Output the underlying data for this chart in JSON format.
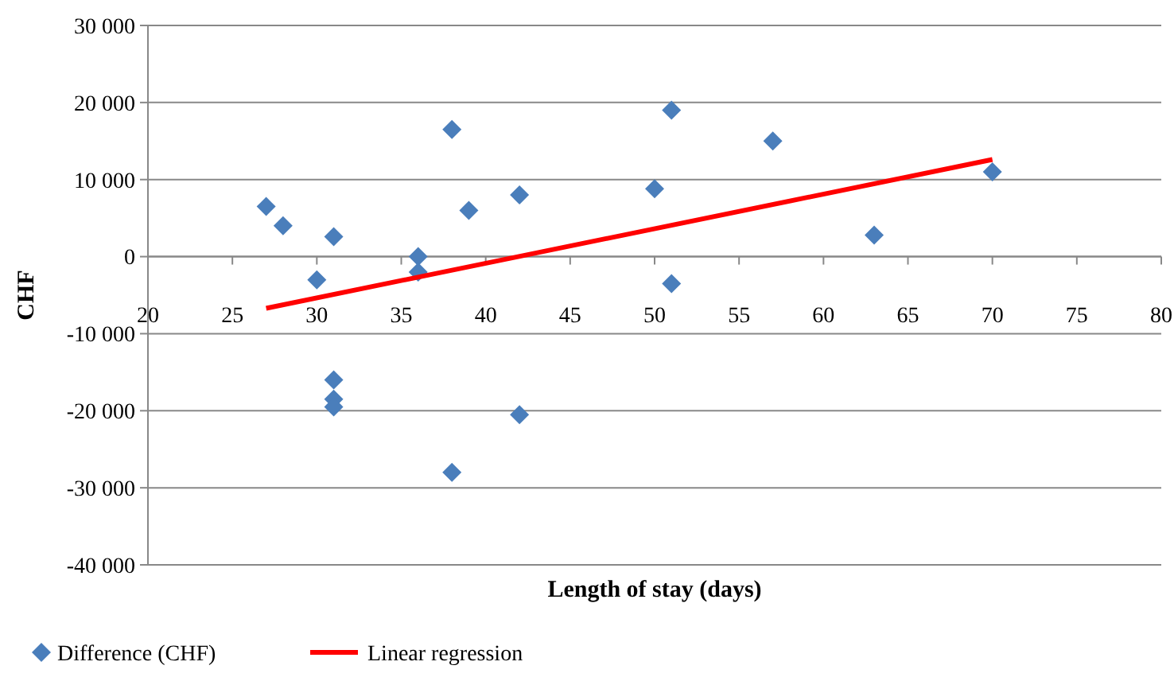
{
  "chart_data": {
    "type": "scatter",
    "xlabel": "Length of stay (days)",
    "ylabel": "CHF",
    "xlim": [
      20,
      80
    ],
    "xticks": [
      20,
      25,
      30,
      35,
      40,
      45,
      50,
      55,
      60,
      65,
      70,
      75,
      80
    ],
    "ylim": [
      -40000,
      30000
    ],
    "yticks": [
      {
        "value": -40000,
        "label": "-40 000"
      },
      {
        "value": -30000,
        "label": "-30 000"
      },
      {
        "value": -20000,
        "label": "-20 000"
      },
      {
        "value": -10000,
        "label": "-10 000"
      },
      {
        "value": 0,
        "label": "0"
      },
      {
        "value": 10000,
        "label": "10 000"
      },
      {
        "value": 20000,
        "label": "20 000"
      },
      {
        "value": 30000,
        "label": "30 000"
      }
    ],
    "grid": "y",
    "legend": "bottom",
    "marker": "diamond",
    "series": [
      {
        "name": "Difference (CHF)",
        "color": "#4a7ebb",
        "x": [
          27,
          28,
          30,
          31,
          31,
          31,
          31,
          36,
          36,
          38,
          38,
          39,
          42,
          42,
          50,
          51,
          51,
          57,
          63,
          70
        ],
        "values": [
          6500,
          4000,
          -3000,
          2600,
          -16000,
          -18500,
          -19500,
          0,
          -2000,
          16500,
          -28000,
          6000,
          8000,
          -20500,
          8800,
          19000,
          -3500,
          15000,
          2800,
          11000
        ]
      },
      {
        "name": "Linear regression",
        "type": "line",
        "color": "#ff0000",
        "marker": "none",
        "x": [
          27,
          70
        ],
        "values": [
          -6700,
          12600
        ]
      }
    ]
  }
}
